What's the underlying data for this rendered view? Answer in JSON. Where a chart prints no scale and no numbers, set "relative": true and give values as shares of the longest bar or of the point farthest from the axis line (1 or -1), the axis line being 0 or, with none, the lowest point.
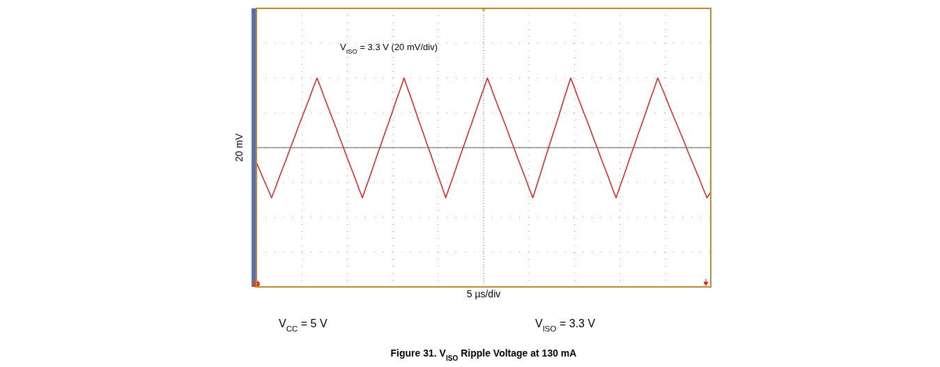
{
  "chart_data": {
    "type": "line",
    "relative": true,
    "grid": true,
    "title": "Figure 31. V$_{ISO}$ Ripple Voltage at 130 mA",
    "ylabel": "20 mV",
    "annotations": [
      "V$_{ISO}$ = 3.3 V (20 mV/div)",
      "5 µs/div",
      "V$_{CC}$ = 5 V",
      "V$_{ISO}$ = 3.3 V"
    ],
    "categories": [
      null,
      null,
      null,
      null,
      null,
      null,
      null,
      null,
      null,
      null,
      null,
      null,
      null,
      null,
      null,
      null,
      null,
      null,
      null,
      null,
      null,
      null,
      null,
      null,
      null,
      null,
      null,
      null,
      null,
      null,
      null,
      null,
      null,
      null,
      null,
      null,
      null,
      null,
      null,
      null,
      null,
      null,
      null,
      null,
      null,
      null,
      null,
      null,
      null,
      null,
      null,
      null,
      null,
      null,
      null,
      null,
      null,
      null,
      null,
      null,
      null,
      null,
      null,
      null,
      null,
      null,
      null,
      null,
      null,
      null,
      null,
      null,
      null,
      null,
      null,
      null,
      null,
      null,
      null,
      null,
      null,
      null,
      null,
      null,
      null,
      null,
      null,
      null,
      null,
      null,
      null,
      null,
      null,
      null,
      null,
      null,
      null,
      null,
      null,
      null,
      null,
      null,
      null,
      null,
      null,
      null,
      null,
      null,
      null,
      null,
      null,
      null,
      null,
      null,
      null,
      null,
      null,
      null,
      null,
      null,
      null
    ],
    "series": [
      {
        "color": "#d42a2a",
        "values": [
          -0.21,
          -0.34,
          -0.47,
          -0.59,
          -0.72,
          -0.58,
          -0.43,
          -0.29,
          -0.15,
          0.0,
          0.14,
          0.29,
          0.43,
          0.57,
          0.71,
          0.86,
          1,
          0.86,
          0.71,
          0.57,
          0.43,
          0.29,
          0.14,
          0.0,
          -0.15,
          -0.29,
          -0.43,
          -0.58,
          -0.72,
          -0.56,
          -0.41,
          -0.25,
          -0.09,
          0.06,
          0.22,
          0.37,
          0.53,
          0.69,
          0.84,
          1,
          0.84,
          0.69,
          0.53,
          0.37,
          0.22,
          0.06,
          -0.09,
          -0.25,
          -0.41,
          -0.56,
          -0.72,
          -0.56,
          -0.41,
          -0.25,
          -0.09,
          0.06,
          0.22,
          0.37,
          0.53,
          0.69,
          0.84,
          1,
          0.86,
          0.71,
          0.57,
          0.43,
          0.29,
          0.14,
          0.0,
          -0.15,
          -0.29,
          -0.43,
          -0.58,
          -0.72,
          -0.55,
          -0.38,
          -0.2,
          -0.03,
          0.14,
          0.31,
          0.48,
          0.66,
          0.83,
          1,
          0.86,
          0.71,
          0.57,
          0.43,
          0.29,
          0.14,
          0.0,
          -0.15,
          -0.29,
          -0.43,
          -0.58,
          -0.72,
          -0.56,
          -0.41,
          -0.25,
          -0.09,
          0.06,
          0.22,
          0.37,
          0.53,
          0.69,
          0.84,
          1,
          0.87,
          0.74,
          0.6,
          0.47,
          0.34,
          0.21,
          0.08,
          -0.06,
          -0.19,
          -0.32,
          -0.45,
          -0.59,
          -0.72,
          -0.64
        ]
      }
    ]
  }
}
